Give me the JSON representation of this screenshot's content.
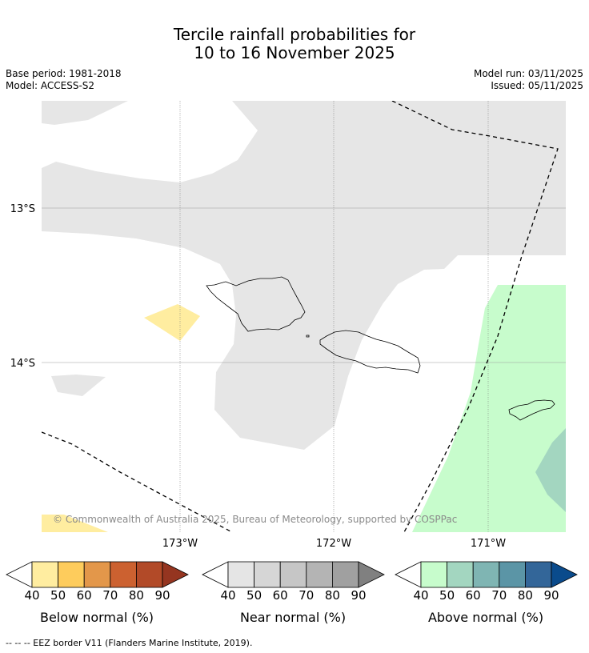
{
  "title": {
    "line1": "Tercile rainfall probabilities for",
    "line2": "10 to 16 November 2025"
  },
  "info": {
    "base_period": "Base period: 1981-2018",
    "model": "Model: ACCESS-S2",
    "model_run": "Model run: 03/11/2025",
    "issued": "Issued: 05/11/2025"
  },
  "map": {
    "lat_labels": [
      "13°S",
      "14°S"
    ],
    "lon_labels": [
      "173°W",
      "172°W",
      "171°W"
    ],
    "copyright": "© Commonwealth of Australia 2025, Bureau of Meteorology, supported by COSPPac",
    "colors": {
      "near_normal_region": "#e6e6e6",
      "below_normal_region": "#ffeda0",
      "above_normal_region": "#c7fccc",
      "above_normal_strong": "#a3d6c0"
    }
  },
  "colorbars": {
    "below": {
      "label": "Below normal (%)",
      "ticks": [
        "40",
        "50",
        "60",
        "70",
        "80",
        "90"
      ],
      "colors": [
        "#ffeda0",
        "#fecc5c",
        "#e3974a",
        "#cc6130",
        "#b24a28",
        "#953520"
      ]
    },
    "near": {
      "label": "Near normal (%)",
      "ticks": [
        "40",
        "50",
        "60",
        "70",
        "80",
        "90"
      ],
      "colors": [
        "#e5e5e5",
        "#d6d6d6",
        "#c6c6c6",
        "#b4b4b4",
        "#a0a0a0",
        "#808080"
      ]
    },
    "above": {
      "label": "Above normal (%)",
      "ticks": [
        "40",
        "50",
        "60",
        "70",
        "80",
        "90"
      ],
      "colors": [
        "#c7fccc",
        "#a3d6c0",
        "#7fb5b3",
        "#5b95a6",
        "#336699",
        "#0a4b8c"
      ]
    }
  },
  "footer": "--  --  -- EEZ border V11 (Flanders Marine Institute, 2019)."
}
